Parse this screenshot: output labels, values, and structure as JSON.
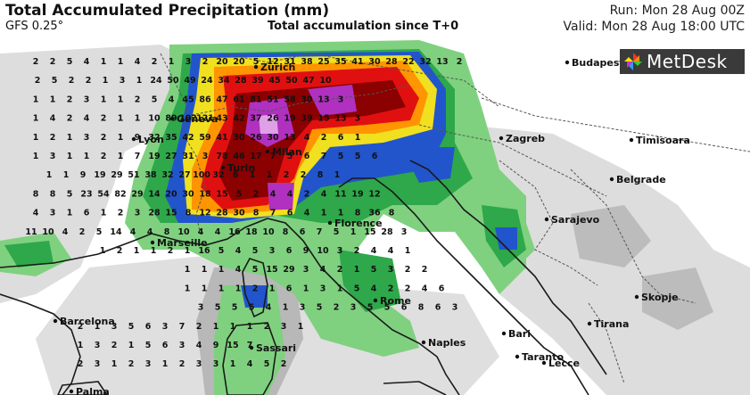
{
  "header": {
    "title": "Total Accumulated Precipitation (mm)",
    "model": "GFS 0.25°",
    "subtitle": "Total accumulation since T+0",
    "run": "Run: Mon 28 Aug 00Z",
    "valid": "Valid: Mon 28 Aug 18:00 UTC"
  },
  "brand": {
    "name": "MetDesk",
    "icon": "metdesk-pinwheel-icon"
  },
  "colors": {
    "sea": "#ffffff",
    "land": "#ffffff",
    "coast": "#1a1a1a",
    "border": "#555555",
    "light_grey": "#d9d9d9",
    "mid_grey": "#a6a6a6",
    "light_green": "#7fd17f",
    "green": "#2ea84a",
    "dark_green": "#0f7a2e",
    "blue": "#2255cc",
    "dark_blue": "#1a2a99",
    "yellow": "#f0e020",
    "orange": "#ff9500",
    "red": "#e01010",
    "dark_red": "#8b0000",
    "purple": "#b030c0",
    "light_purple": "#e0a0e8"
  },
  "cities": [
    {
      "name": "Zurich"
    },
    {
      "name": "Budapest"
    },
    {
      "name": "Geneva"
    },
    {
      "name": "Lyon"
    },
    {
      "name": "Milan"
    },
    {
      "name": "Zagreb"
    },
    {
      "name": "Timisoara"
    },
    {
      "name": "Turin"
    },
    {
      "name": "Belgrade"
    },
    {
      "name": "Florence"
    },
    {
      "name": "Sarajevo"
    },
    {
      "name": "Marseille"
    },
    {
      "name": "Rome"
    },
    {
      "name": "Skopje"
    },
    {
      "name": "Barcelona"
    },
    {
      "name": "Tirana"
    },
    {
      "name": "Bari"
    },
    {
      "name": "Naples"
    },
    {
      "name": "Sassari"
    },
    {
      "name": "Taranto"
    },
    {
      "name": "Lecce"
    },
    {
      "name": "Palma"
    }
  ],
  "values": [
    [
      "2",
      "2",
      "5",
      "4",
      "1",
      "1",
      "4",
      "2",
      "1",
      "3",
      "2",
      "20",
      "20",
      "5",
      "12",
      "31",
      "38",
      "25",
      "35",
      "41",
      "30",
      "28",
      "22",
      "32",
      "13",
      "2"
    ],
    [
      "2",
      "5",
      "2",
      "2",
      "1",
      "3",
      "1",
      "24",
      "50",
      "49",
      "24",
      "34",
      "28",
      "39",
      "45",
      "50",
      "47",
      "10"
    ],
    [
      "1",
      "1",
      "2",
      "3",
      "1",
      "1",
      "2",
      "5",
      "4",
      "45",
      "86",
      "47",
      "61",
      "81",
      "51",
      "58",
      "30",
      "13",
      "3"
    ],
    [
      "1",
      "4",
      "2",
      "4",
      "2",
      "1",
      "1",
      "10",
      "89",
      "102",
      "121",
      "43",
      "42",
      "37",
      "26",
      "19",
      "39",
      "15",
      "13",
      "3"
    ],
    [
      "1",
      "2",
      "1",
      "3",
      "2",
      "1",
      "9",
      "32",
      "35",
      "42",
      "59",
      "41",
      "30",
      "26",
      "30",
      "13",
      "4",
      "2",
      "6",
      "1"
    ],
    [
      "1",
      "3",
      "1",
      "1",
      "2",
      "1",
      "7",
      "19",
      "27",
      "31",
      "3",
      "78",
      "46",
      "17",
      "7",
      "5",
      "6",
      "7",
      "5",
      "5",
      "6"
    ],
    [
      "1",
      "1",
      "9",
      "19",
      "29",
      "51",
      "38",
      "32",
      "27",
      "100",
      "32",
      "6",
      "1",
      "1",
      "2",
      "2",
      "8",
      "1"
    ],
    [
      "8",
      "8",
      "5",
      "23",
      "54",
      "82",
      "29",
      "14",
      "20",
      "30",
      "18",
      "15",
      "5",
      "2",
      "4",
      "4",
      "2",
      "4",
      "11",
      "19",
      "12"
    ],
    [
      "4",
      "3",
      "1",
      "6",
      "1",
      "2",
      "3",
      "28",
      "15",
      "8",
      "12",
      "28",
      "30",
      "8",
      "7",
      "6",
      "4",
      "1",
      "1",
      "8",
      "36",
      "8"
    ],
    [
      "11",
      "10",
      "4",
      "2",
      "5",
      "14",
      "4",
      "4",
      "8",
      "10",
      "4",
      "4",
      "16",
      "18",
      "10",
      "8",
      "6",
      "7",
      "5",
      "1",
      "15",
      "28",
      "3"
    ],
    [
      "1",
      "2",
      "1",
      "1",
      "2",
      "1",
      "16",
      "5",
      "4",
      "5",
      "3",
      "6",
      "9",
      "10",
      "3",
      "2",
      "4",
      "4",
      "1"
    ],
    [
      "1",
      "1",
      "1",
      "4",
      "5",
      "15",
      "29",
      "3",
      "4",
      "2",
      "1",
      "5",
      "3",
      "2",
      "2"
    ],
    [
      "1",
      "1",
      "1",
      "1",
      "2",
      "1",
      "6",
      "1",
      "3",
      "1",
      "5",
      "4",
      "2",
      "2",
      "4",
      "6"
    ],
    [
      "3",
      "5",
      "5",
      "5",
      "4",
      "1",
      "3",
      "5",
      "2",
      "3",
      "5",
      "5",
      "6",
      "8",
      "6",
      "3"
    ],
    [
      "2",
      "1",
      "3",
      "5",
      "6",
      "3",
      "7",
      "2",
      "1",
      "1",
      "1",
      "2",
      "3",
      "1"
    ],
    [
      "1",
      "3",
      "2",
      "1",
      "5",
      "6",
      "3",
      "4",
      "9",
      "15",
      "7"
    ],
    [
      "2",
      "3",
      "1",
      "2",
      "3",
      "1",
      "2",
      "3",
      "3",
      "1",
      "4",
      "5",
      "2"
    ]
  ]
}
